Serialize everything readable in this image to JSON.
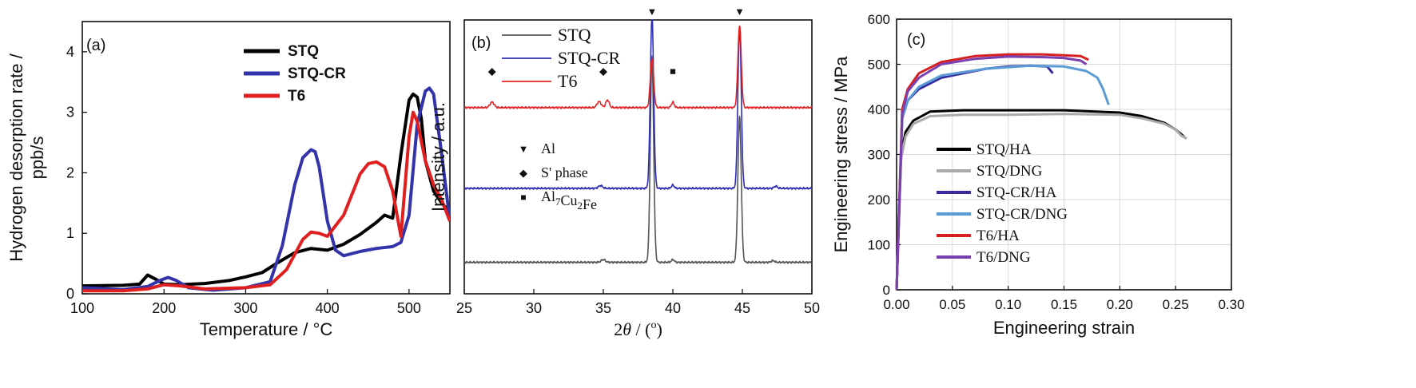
{
  "chart_data": [
    {
      "type": "line",
      "panel_label": "(a)",
      "xlabel": "Temperature / °C",
      "ylabel": "Hydrogen desorption rate / ppb/s",
      "ylabel_lines": [
        "Hydrogen desorption rate /",
        "ppb/s"
      ],
      "xlim": [
        100,
        550
      ],
      "ylim": [
        0,
        4.5
      ],
      "xticks": [
        100,
        200,
        300,
        400,
        500
      ],
      "yticks": [
        0,
        1,
        2,
        3,
        4
      ],
      "legend_position": "top-right",
      "series": [
        {
          "name": "STQ",
          "color": "#000000",
          "x": [
            100,
            150,
            170,
            180,
            190,
            200,
            220,
            250,
            280,
            300,
            320,
            340,
            360,
            380,
            400,
            420,
            440,
            460,
            470,
            480,
            490,
            500,
            505,
            510,
            515,
            520,
            530,
            540,
            550
          ],
          "y": [
            0.13,
            0.14,
            0.16,
            0.31,
            0.24,
            0.16,
            0.15,
            0.17,
            0.22,
            0.28,
            0.35,
            0.52,
            0.68,
            0.75,
            0.72,
            0.82,
            0.98,
            1.18,
            1.3,
            1.25,
            2.3,
            3.2,
            3.3,
            3.25,
            2.9,
            2.2,
            1.7,
            1.5,
            1.35
          ]
        },
        {
          "name": "STQ-CR",
          "color": "#3333aa",
          "x": [
            100,
            150,
            180,
            195,
            205,
            215,
            230,
            260,
            300,
            330,
            345,
            360,
            370,
            380,
            385,
            390,
            400,
            410,
            420,
            440,
            460,
            480,
            490,
            500,
            510,
            520,
            525,
            530,
            540,
            550
          ],
          "y": [
            0.1,
            0.07,
            0.12,
            0.22,
            0.27,
            0.22,
            0.1,
            0.06,
            0.1,
            0.2,
            0.8,
            1.8,
            2.25,
            2.38,
            2.35,
            2.1,
            1.2,
            0.72,
            0.63,
            0.7,
            0.75,
            0.78,
            0.85,
            1.3,
            2.8,
            3.35,
            3.4,
            3.3,
            2.3,
            1.2
          ]
        },
        {
          "name": "T6",
          "color": "#e02020",
          "x": [
            100,
            150,
            180,
            200,
            220,
            250,
            300,
            330,
            350,
            370,
            380,
            390,
            400,
            420,
            440,
            450,
            460,
            470,
            480,
            490,
            500,
            505,
            510,
            520,
            530,
            540,
            550
          ],
          "y": [
            0.05,
            0.05,
            0.08,
            0.15,
            0.13,
            0.08,
            0.1,
            0.15,
            0.4,
            0.9,
            1.02,
            1.0,
            0.95,
            1.3,
            1.98,
            2.15,
            2.18,
            2.1,
            1.7,
            0.95,
            2.6,
            3.0,
            2.85,
            2.2,
            1.8,
            1.55,
            1.2
          ]
        }
      ]
    },
    {
      "type": "line",
      "panel_label": "(b)",
      "xlabel": "2θ / (°)",
      "xlabel_parts": [
        "2",
        "θ",
        " / (",
        "o",
        ")"
      ],
      "ylabel": "Intensity / a.u.",
      "xlim": [
        25,
        50
      ],
      "ylim": [
        0,
        100
      ],
      "xticks": [
        25,
        30,
        35,
        40,
        45,
        50
      ],
      "legend_position": "top-left",
      "peak_marker_symbols": {
        "al": "▼",
        "s_phase": "◆",
        "al7cu2fe": "■"
      },
      "phase_legend": [
        {
          "symbol": "▼",
          "label": "Al"
        },
        {
          "symbol": "◆",
          "label": "S' phase"
        },
        {
          "symbol": "■",
          "label": "Al7Cu2Fe"
        }
      ],
      "top_markers": [
        {
          "symbol": "▼",
          "x": 38.5
        },
        {
          "symbol": "▼",
          "x": 44.8
        }
      ],
      "t6_markers": [
        {
          "symbol": "◆",
          "x": 27.0
        },
        {
          "symbol": "◆",
          "x": 35.0
        },
        {
          "symbol": "■",
          "x": 40.0
        }
      ],
      "series": [
        {
          "name": "STQ",
          "color": "#555555",
          "baseline": 11.5,
          "peaks": [
            [
              35.0,
              1.0,
              0.15
            ],
            [
              38.5,
              75,
              0.12
            ],
            [
              40.0,
              1.0,
              0.1
            ],
            [
              44.8,
              53,
              0.12
            ],
            [
              47.2,
              0.6,
              0.12
            ]
          ]
        },
        {
          "name": "STQ-CR",
          "color": "#2d2db5",
          "baseline": 38.5,
          "peaks": [
            [
              34.8,
              1.0,
              0.15
            ],
            [
              38.5,
              63,
              0.12
            ],
            [
              40.0,
              1.2,
              0.1
            ],
            [
              44.8,
              59,
              0.12
            ],
            [
              47.4,
              0.8,
              0.12
            ]
          ]
        },
        {
          "name": "T6",
          "color": "#e52525",
          "baseline": 68,
          "peaks": [
            [
              27.0,
              2.0,
              0.15
            ],
            [
              34.7,
              2.2,
              0.15
            ],
            [
              35.3,
              2.8,
              0.12
            ],
            [
              38.5,
              18,
              0.12
            ],
            [
              40.0,
              2.0,
              0.1
            ],
            [
              44.8,
              30,
              0.12
            ]
          ]
        }
      ]
    },
    {
      "type": "line",
      "panel_label": "(c)",
      "xlabel": "Engineering strain",
      "ylabel": "Engineering stress / MPa",
      "xlim": [
        0,
        0.3
      ],
      "ylim": [
        0,
        600
      ],
      "xticks": [
        0.0,
        0.05,
        0.1,
        0.15,
        0.2,
        0.25,
        0.3
      ],
      "xtick_labels": [
        "0.00",
        "0.05",
        "0.10",
        "0.15",
        "0.20",
        "0.25",
        "0.30"
      ],
      "yticks": [
        0,
        100,
        200,
        300,
        400,
        500,
        600
      ],
      "grid": true,
      "legend_position": "bottom-left",
      "series": [
        {
          "name": "STQ/HA",
          "color": "#000000",
          "x": [
            0,
            0.004,
            0.008,
            0.015,
            0.03,
            0.06,
            0.1,
            0.15,
            0.2,
            0.22,
            0.24,
            0.25,
            0.255,
            0.258
          ],
          "y": [
            0,
            300,
            350,
            375,
            395,
            398,
            398,
            398,
            393,
            385,
            370,
            355,
            345,
            338
          ]
        },
        {
          "name": "STQ/DNG",
          "color": "#aaaaaa",
          "x": [
            0,
            0.004,
            0.008,
            0.015,
            0.03,
            0.06,
            0.1,
            0.15,
            0.2,
            0.22,
            0.24,
            0.25,
            0.255,
            0.26
          ],
          "y": [
            0,
            290,
            340,
            368,
            385,
            388,
            388,
            390,
            388,
            380,
            368,
            355,
            342,
            335
          ]
        },
        {
          "name": "STQ-CR/HA",
          "color": "#3a2aa0",
          "x": [
            0,
            0.005,
            0.01,
            0.02,
            0.04,
            0.06,
            0.08,
            0.1,
            0.12,
            0.135,
            0.14
          ],
          "y": [
            0,
            380,
            420,
            445,
            470,
            480,
            490,
            495,
            497,
            495,
            480
          ]
        },
        {
          "name": "STQ-CR/DNG",
          "color": "#5b9bd5",
          "x": [
            0,
            0.005,
            0.01,
            0.02,
            0.04,
            0.08,
            0.12,
            0.15,
            0.17,
            0.18,
            0.185,
            0.19
          ],
          "y": [
            0,
            380,
            420,
            450,
            475,
            490,
            497,
            495,
            485,
            470,
            445,
            410
          ]
        },
        {
          "name": "T6/HA",
          "color": "#d42020",
          "x": [
            0,
            0.005,
            0.01,
            0.02,
            0.04,
            0.07,
            0.1,
            0.13,
            0.15,
            0.165,
            0.172
          ],
          "y": [
            0,
            400,
            445,
            480,
            505,
            518,
            522,
            522,
            520,
            518,
            510
          ]
        },
        {
          "name": "T6/DNG",
          "color": "#7a3fb0",
          "x": [
            0,
            0.005,
            0.01,
            0.02,
            0.04,
            0.07,
            0.1,
            0.13,
            0.15,
            0.165,
            0.17
          ],
          "y": [
            0,
            390,
            440,
            470,
            500,
            512,
            517,
            516,
            514,
            508,
            500
          ]
        }
      ]
    }
  ]
}
